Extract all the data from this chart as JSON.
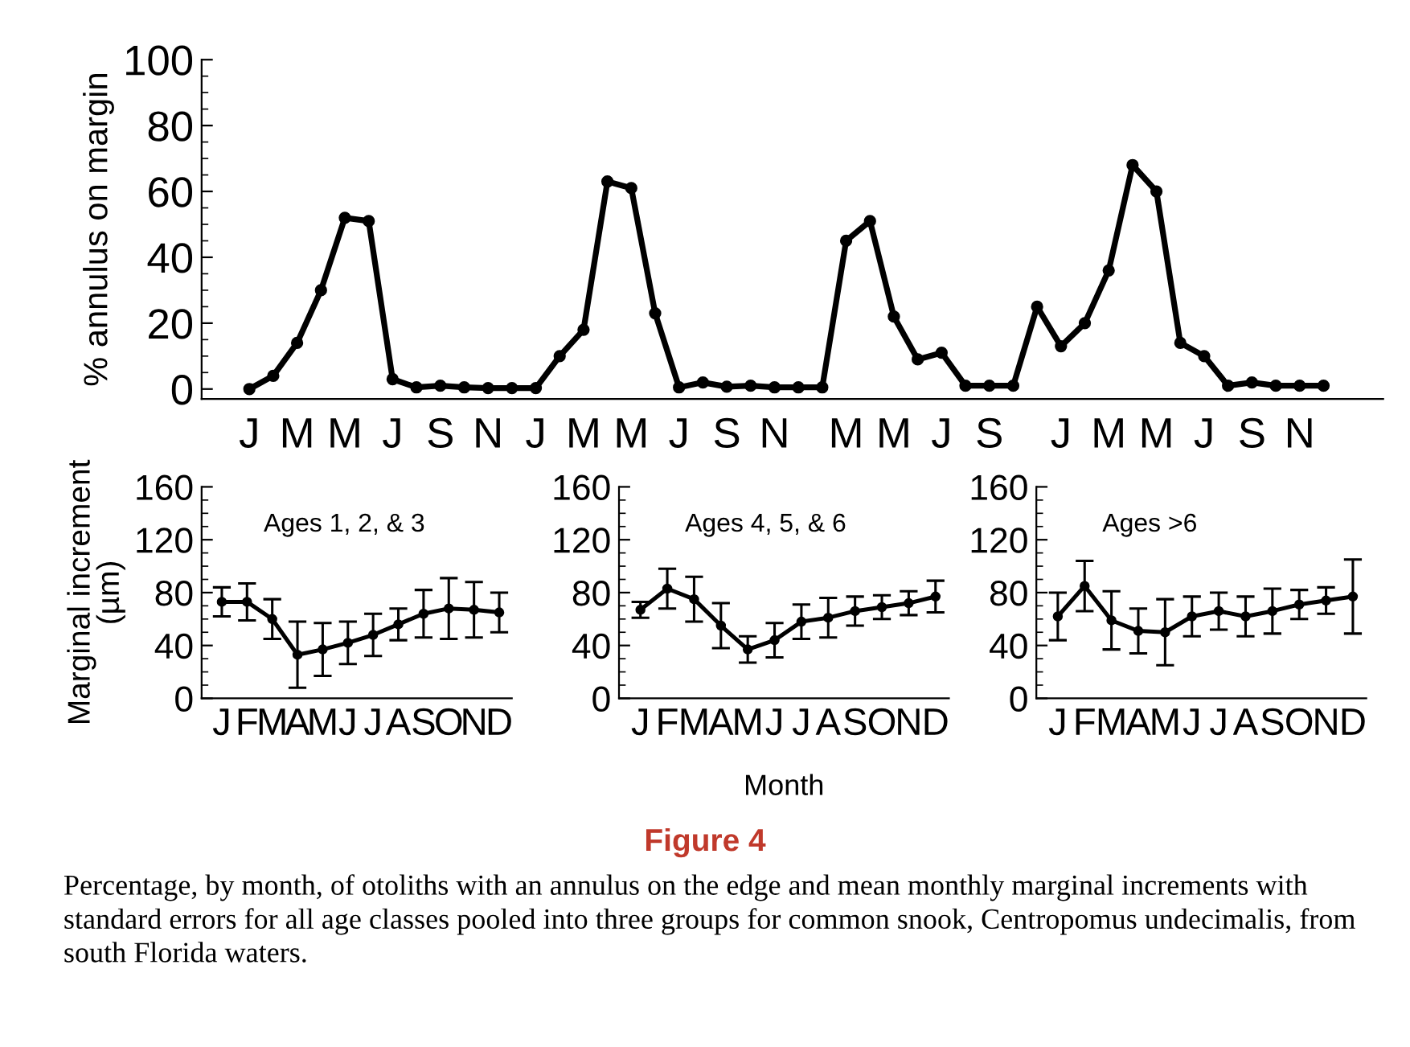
{
  "chart_data": [
    {
      "type": "line",
      "ylabel": "% annulus on margin",
      "marker": "circle",
      "line_style": "solid",
      "categories": [
        "J",
        null,
        "M",
        null,
        "M",
        null,
        "J",
        null,
        "S",
        null,
        "N",
        null,
        "J",
        null,
        "M",
        null,
        "M",
        null,
        "J",
        null,
        "S",
        null,
        "N",
        null,
        null,
        "M",
        null,
        "M",
        null,
        "J",
        null,
        "S",
        null,
        null,
        "J",
        null,
        "M",
        null,
        "M",
        null,
        "J",
        null,
        "S",
        null,
        "N",
        null
      ],
      "series": [
        {
          "color": "#000000",
          "values": [
            0,
            4,
            14,
            30,
            52,
            51,
            3,
            0.5,
            1,
            0.5,
            0.3,
            0.3,
            0.3,
            10,
            18,
            63,
            61,
            23,
            0.5,
            2,
            0.7,
            1,
            0.5,
            0.5,
            0.5,
            45,
            51,
            22,
            9,
            11,
            1,
            1,
            1,
            25,
            13,
            20,
            36,
            68,
            60,
            14,
            10,
            1,
            2,
            1,
            1,
            1
          ]
        }
      ],
      "ylim": [
        -3,
        100
      ],
      "yticks": [
        0,
        20,
        40,
        60,
        80,
        100
      ],
      "annotations": [
        "Figure 4",
        "Percentage, by month, of otoliths with an annulus on the edge and mean monthly marginal increments with standard errors for all age classes pooled into three groups for common snook, Centropomus undecimalis, from south Florida waters."
      ]
    },
    {
      "type": "line",
      "ylabel": "Marginal increment\n(µm)",
      "marker": "circle",
      "line_style": "solid",
      "categories": [
        "J",
        "F",
        "M",
        "A",
        "M",
        "J",
        "J",
        "A",
        "S",
        "O",
        "N",
        "D"
      ],
      "series": [
        {
          "color": "#000000",
          "values": [
            73,
            73,
            60,
            33,
            37,
            42,
            48,
            56,
            64,
            68,
            67,
            65
          ],
          "errors": [
            11,
            14,
            15,
            25,
            20,
            16,
            16,
            12,
            18,
            23,
            21,
            15
          ]
        }
      ],
      "ylim": [
        0,
        160
      ],
      "yticks": [
        0,
        40,
        80,
        120,
        160
      ],
      "annotations": [
        "Ages 1, 2, & 3"
      ]
    },
    {
      "type": "line",
      "xlabel": "Month",
      "marker": "circle",
      "line_style": "solid",
      "categories": [
        "J",
        "F",
        "M",
        "A",
        "M",
        "J",
        "J",
        "A",
        "S",
        "O",
        "N",
        "D"
      ],
      "series": [
        {
          "color": "#000000",
          "values": [
            67,
            83,
            75,
            55,
            37,
            44,
            58,
            61,
            66,
            69,
            72,
            77
          ],
          "errors": [
            6,
            15,
            17,
            17,
            10,
            13,
            13,
            15,
            11,
            9,
            9,
            12
          ]
        }
      ],
      "ylim": [
        0,
        160
      ],
      "yticks": [
        0,
        40,
        80,
        120,
        160
      ],
      "annotations": [
        "Ages 4, 5, & 6"
      ]
    },
    {
      "type": "line",
      "marker": "circle",
      "line_style": "solid",
      "categories": [
        "J",
        "F",
        "M",
        "A",
        "M",
        "J",
        "J",
        "A",
        "S",
        "O",
        "N",
        "D"
      ],
      "series": [
        {
          "color": "#000000",
          "values": [
            62,
            85,
            59,
            51,
            50,
            62,
            66,
            62,
            66,
            71,
            74,
            77
          ],
          "errors": [
            18,
            19,
            22,
            17,
            25,
            15,
            14,
            15,
            17,
            11,
            10,
            28
          ]
        }
      ],
      "ylim": [
        0,
        160
      ],
      "yticks": [
        0,
        40,
        80,
        120,
        160
      ],
      "annotations": [
        "Ages >6"
      ]
    }
  ]
}
